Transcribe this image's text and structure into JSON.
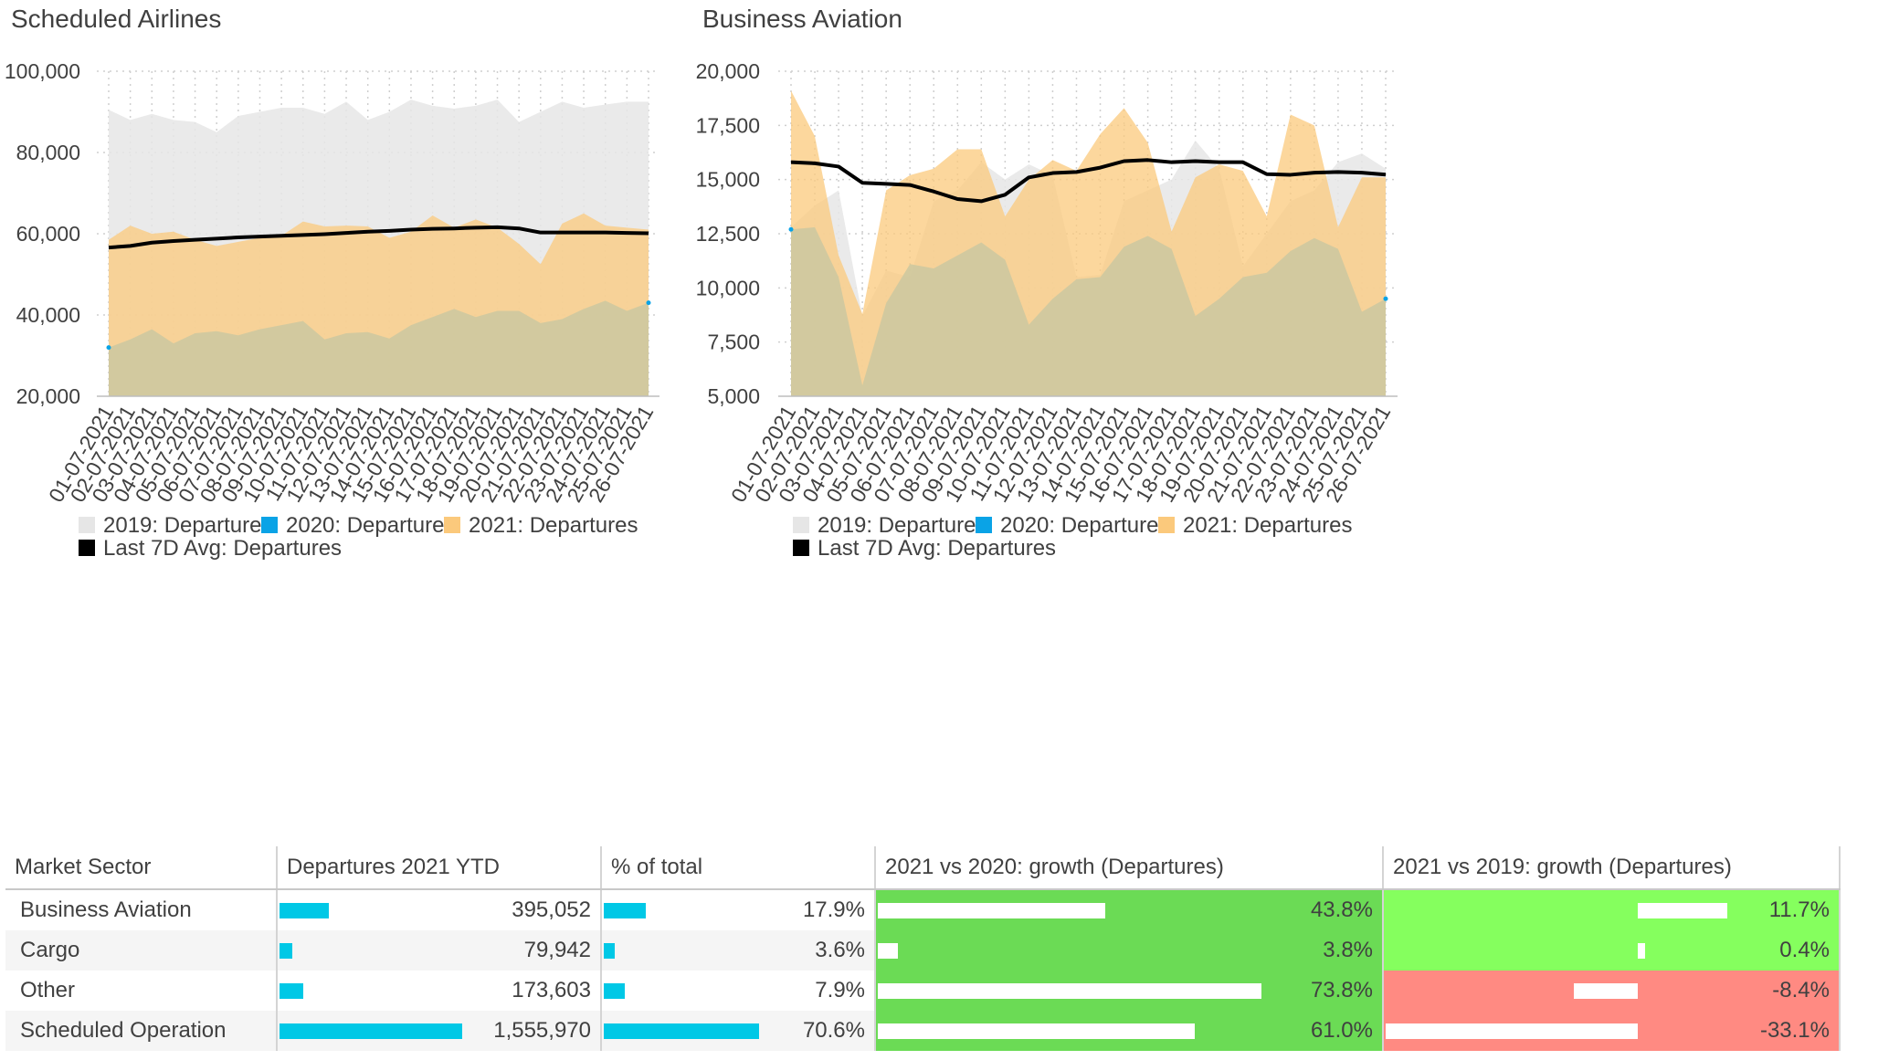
{
  "colors": {
    "y2019": "#e6e6e6",
    "y2020": "#0aa3e6",
    "y2021": "#fbc97c",
    "avg": "#000000",
    "overlap": "#cbc8a0",
    "pos_strong": "#6bdb55",
    "pos_light": "#85ff5e",
    "neg": "#ff8a82",
    "table_bar": "#00c8e6"
  },
  "chart_data": [
    {
      "type": "area",
      "title": "Scheduled Airlines",
      "x": [
        "01-07-2021",
        "02-07-2021",
        "03-07-2021",
        "04-07-2021",
        "05-07-2021",
        "06-07-2021",
        "07-07-2021",
        "08-07-2021",
        "09-07-2021",
        "10-07-2021",
        "11-07-2021",
        "12-07-2021",
        "13-07-2021",
        "14-07-2021",
        "15-07-2021",
        "16-07-2021",
        "17-07-2021",
        "18-07-2021",
        "19-07-2021",
        "20-07-2021",
        "21-07-2021",
        "22-07-2021",
        "23-07-2021",
        "24-07-2021",
        "25-07-2021",
        "26-07-2021"
      ],
      "ylim": [
        20000,
        100000
      ],
      "yticks": [
        "20,000",
        "40,000",
        "60,000",
        "80,000",
        "100,000"
      ],
      "ytick_values": [
        20000,
        40000,
        60000,
        80000,
        100000
      ],
      "grid": true,
      "legend_position": "bottom-left",
      "series": [
        {
          "name": "2019: Departures",
          "color_key": "y2019",
          "values": [
            90500,
            88000,
            89500,
            88000,
            87500,
            85000,
            89000,
            90000,
            91000,
            91000,
            89500,
            92500,
            88000,
            90000,
            93000,
            91500,
            90800,
            91500,
            93000,
            87500,
            90000,
            92500,
            91000,
            91800,
            92500,
            92500
          ]
        },
        {
          "name": "2020: Departures",
          "color_key": "y2020",
          "values": [
            32000,
            34000,
            36500,
            33000,
            35500,
            36000,
            35000,
            36500,
            37500,
            38500,
            34000,
            35500,
            35800,
            34200,
            37500,
            39500,
            41500,
            39500,
            41000,
            41000,
            38000,
            39000,
            41500,
            43500,
            41000,
            43000
          ]
        },
        {
          "name": "2021: Departures",
          "color_key": "y2021",
          "values": [
            58500,
            62000,
            60000,
            60500,
            58500,
            57000,
            58000,
            59000,
            59500,
            63000,
            61800,
            62000,
            61800,
            59000,
            60500,
            64500,
            61500,
            63500,
            61500,
            57500,
            52500,
            62500,
            65000,
            62000,
            61500,
            61000
          ]
        },
        {
          "name": "Last 7D Avg: Departures",
          "color_key": "avg",
          "values": [
            56600,
            57000,
            57800,
            58200,
            58500,
            58800,
            59100,
            59300,
            59500,
            59700,
            59900,
            60200,
            60500,
            60700,
            61000,
            61200,
            61300,
            61500,
            61600,
            61300,
            60300,
            60300,
            60300,
            60300,
            60200,
            60100
          ]
        }
      ]
    },
    {
      "type": "area",
      "title": "Business Aviation",
      "x": [
        "01-07-2021",
        "02-07-2021",
        "03-07-2021",
        "04-07-2021",
        "05-07-2021",
        "06-07-2021",
        "07-07-2021",
        "08-07-2021",
        "09-07-2021",
        "10-07-2021",
        "11-07-2021",
        "12-07-2021",
        "13-07-2021",
        "14-07-2021",
        "15-07-2021",
        "16-07-2021",
        "17-07-2021",
        "18-07-2021",
        "19-07-2021",
        "20-07-2021",
        "21-07-2021",
        "22-07-2021",
        "23-07-2021",
        "24-07-2021",
        "25-07-2021",
        "26-07-2021"
      ],
      "ylim": [
        5000,
        20000
      ],
      "yticks": [
        "5,000",
        "7,500",
        "10,000",
        "12,500",
        "15,000",
        "17,500",
        "20,000"
      ],
      "ytick_values": [
        5000,
        7500,
        10000,
        12500,
        15000,
        17500,
        20000
      ],
      "grid": true,
      "legend_position": "bottom-left",
      "series": [
        {
          "name": "2019: Departures",
          "color_key": "y2019",
          "values": [
            12800,
            13800,
            14500,
            8700,
            10800,
            10500,
            14000,
            14500,
            15800,
            15000,
            15700,
            15200,
            10500,
            10600,
            14000,
            14500,
            15000,
            16800,
            15500,
            11000,
            12500,
            14000,
            14500,
            15800,
            16200,
            15500
          ]
        },
        {
          "name": "2020: Departures",
          "color_key": "y2020",
          "values": [
            12700,
            12800,
            10500,
            5500,
            9300,
            11100,
            10900,
            11500,
            12100,
            11300,
            8300,
            9500,
            10400,
            10500,
            11900,
            12400,
            11800,
            8700,
            9500,
            10500,
            10700,
            11700,
            12300,
            11800,
            8900,
            9500
          ]
        },
        {
          "name": "2021: Departures",
          "color_key": "y2021",
          "values": [
            19100,
            17000,
            11500,
            8800,
            14500,
            15200,
            15500,
            16400,
            16400,
            13300,
            15000,
            15900,
            15400,
            17100,
            18300,
            16700,
            12600,
            15100,
            15700,
            15400,
            13300,
            18000,
            17500,
            12800,
            15100,
            15100
          ]
        },
        {
          "name": "Last 7D Avg: Departures",
          "color_key": "avg",
          "values": [
            15800,
            15750,
            15600,
            14850,
            14800,
            14750,
            14450,
            14100,
            14000,
            14300,
            15100,
            15300,
            15350,
            15550,
            15850,
            15900,
            15800,
            15850,
            15800,
            15800,
            15250,
            15220,
            15320,
            15350,
            15320,
            15230
          ]
        }
      ]
    }
  ],
  "table": {
    "headers": [
      "Market Sector",
      "Departures 2021 YTD",
      "% of total",
      "2021 vs 2020: growth (Departures)",
      "2021 vs 2019: growth (Departures)"
    ],
    "rows": [
      {
        "sector": "Business Aviation",
        "ytd": "395,052",
        "ytd_value": 395052,
        "pct": "17.9%",
        "pct_value": 17.9,
        "g2020": "43.8%",
        "g2020_value": 43.8,
        "g2019": "11.7%",
        "g2019_value": 11.7
      },
      {
        "sector": "Cargo",
        "ytd": "79,942",
        "ytd_value": 79942,
        "pct": "3.6%",
        "pct_value": 3.6,
        "g2020": "3.8%",
        "g2020_value": 3.8,
        "g2019": "0.4%",
        "g2019_value": 0.4
      },
      {
        "sector": "Other",
        "ytd": "173,603",
        "ytd_value": 173603,
        "pct": "7.9%",
        "pct_value": 7.9,
        "g2020": "73.8%",
        "g2020_value": 73.8,
        "g2019": "-8.4%",
        "g2019_value": -8.4
      },
      {
        "sector": "Scheduled Operation",
        "ytd": "1,555,970",
        "ytd_value": 1555970,
        "pct": "70.6%",
        "pct_value": 70.6,
        "g2020": "61.0%",
        "g2020_value": 61.0,
        "g2019": "-33.1%",
        "g2019_value": -33.1
      }
    ]
  }
}
